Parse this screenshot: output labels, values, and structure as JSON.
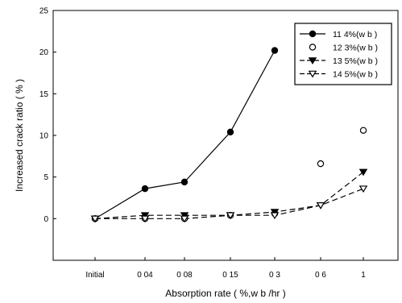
{
  "chart_data": {
    "type": "line",
    "title": "",
    "xlabel": "Absorption rate ( %,w b /hr )",
    "ylabel": "Increased crack ratio ( % )",
    "categories": [
      "Initial",
      "0 04",
      "0 08",
      "0 15",
      "0 3",
      "0 6",
      "1"
    ],
    "ylim": [
      -5,
      25
    ],
    "yticks": [
      "0",
      "5",
      "10",
      "15",
      "20",
      "25"
    ],
    "grid": false,
    "legend_position": "top-right",
    "series": [
      {
        "name": "11 4%(w b )",
        "values": [
          0,
          3.6,
          4.4,
          10.4,
          20.2,
          null,
          null
        ],
        "marker": "filled-circle",
        "line": "solid"
      },
      {
        "name": "12 3%(w b )",
        "values": [
          0,
          0.0,
          0.0,
          0.4,
          0.6,
          6.6,
          10.6
        ],
        "marker": "open-circle",
        "line": "none"
      },
      {
        "name": "13 5%(w b )",
        "values": [
          0,
          0.4,
          0.4,
          0.4,
          0.8,
          1.6,
          5.6
        ],
        "marker": "filled-triangle-down",
        "line": "dashed"
      },
      {
        "name": "14 5%(w b )",
        "values": [
          0,
          0.0,
          0.0,
          0.4,
          0.4,
          1.6,
          3.6
        ],
        "marker": "open-triangle-down",
        "line": "dashed"
      }
    ]
  }
}
